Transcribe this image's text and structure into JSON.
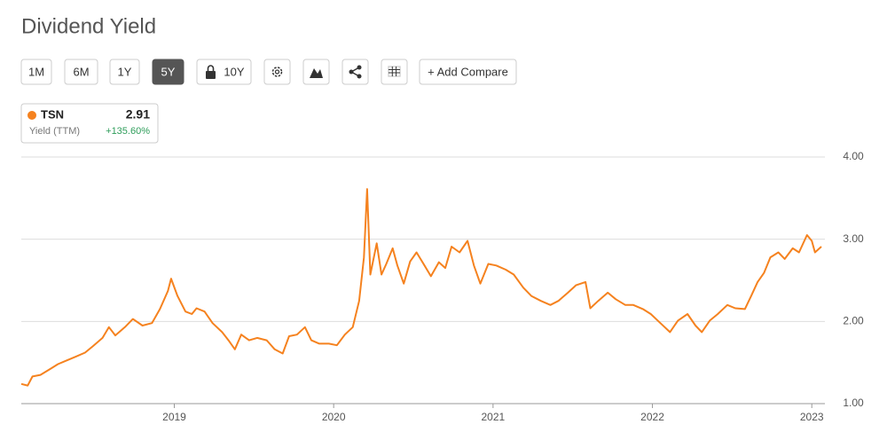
{
  "header": {
    "title": "Dividend Yield"
  },
  "toolbar": {
    "buttons": [
      "1M",
      "6M",
      "1Y",
      "5Y",
      "10Y"
    ],
    "selected": 3,
    "compare": "+ Add Compare"
  },
  "legend": {
    "subtitle": "Yield (TTM)",
    "value": 2.91,
    "change": "+135.60%"
  },
  "chart_data": {
    "type": "line",
    "x": [
      2018.04,
      2018.08,
      2018.11,
      2018.16,
      2018.22,
      2018.27,
      2018.33,
      2018.38,
      2018.44,
      2018.49,
      2018.55,
      2018.59,
      2018.63,
      2018.69,
      2018.74,
      2018.8,
      2018.86,
      2018.91,
      2018.96,
      2018.98,
      2019.02,
      2019.07,
      2019.11,
      2019.14,
      2019.19,
      2019.24,
      2019.3,
      2019.34,
      2019.38,
      2019.42,
      2019.47,
      2019.52,
      2019.58,
      2019.63,
      2019.68,
      2019.72,
      2019.77,
      2019.82,
      2019.86,
      2019.91,
      2019.97,
      2020.02,
      2020.07,
      2020.12,
      2020.16,
      2020.19,
      2020.21,
      2020.23,
      2020.27,
      2020.3,
      2020.33,
      2020.37,
      2020.4,
      2020.44,
      2020.48,
      2020.52,
      2020.57,
      2020.61,
      2020.66,
      2020.7,
      2020.74,
      2020.79,
      2020.84,
      2020.88,
      2020.92,
      2020.97,
      2021.02,
      2021.08,
      2021.13,
      2021.19,
      2021.24,
      2021.3,
      2021.36,
      2021.41,
      2021.47,
      2021.52,
      2021.58,
      2021.61,
      2021.66,
      2021.72,
      2021.77,
      2021.83,
      2021.88,
      2021.94,
      2021.99,
      2022.05,
      2022.11,
      2022.16,
      2022.22,
      2022.27,
      2022.31,
      2022.36,
      2022.41,
      2022.47,
      2022.52,
      2022.58,
      2022.62,
      2022.66,
      2022.7,
      2022.74,
      2022.79,
      2022.83,
      2022.88,
      2022.92,
      2022.97,
      2023.0,
      2023.02,
      2023.06
    ],
    "series": [
      {
        "name": "TSN",
        "color": "#f5821f",
        "values": [
          1.24,
          1.22,
          1.33,
          1.35,
          1.42,
          1.48,
          1.53,
          1.57,
          1.62,
          1.7,
          1.8,
          1.93,
          1.83,
          1.93,
          2.03,
          1.95,
          1.98,
          2.15,
          2.37,
          2.52,
          2.31,
          2.12,
          2.09,
          2.16,
          2.12,
          1.98,
          1.87,
          1.77,
          1.66,
          1.84,
          1.77,
          1.8,
          1.77,
          1.66,
          1.61,
          1.82,
          1.84,
          1.93,
          1.77,
          1.73,
          1.73,
          1.71,
          1.84,
          1.93,
          2.25,
          2.78,
          3.61,
          2.57,
          2.95,
          2.57,
          2.7,
          2.89,
          2.68,
          2.46,
          2.73,
          2.84,
          2.68,
          2.55,
          2.72,
          2.65,
          2.91,
          2.84,
          2.98,
          2.68,
          2.46,
          2.7,
          2.68,
          2.63,
          2.57,
          2.41,
          2.31,
          2.25,
          2.2,
          2.25,
          2.35,
          2.44,
          2.48,
          2.16,
          2.25,
          2.35,
          2.27,
          2.2,
          2.2,
          2.15,
          2.09,
          1.98,
          1.87,
          2.01,
          2.09,
          1.95,
          1.87,
          2.01,
          2.09,
          2.2,
          2.16,
          2.15,
          2.31,
          2.48,
          2.59,
          2.78,
          2.84,
          2.76,
          2.89,
          2.84,
          3.05,
          2.98,
          2.84,
          2.91
        ]
      }
    ],
    "xlim": [
      2018.04,
      2023.06
    ],
    "xticks": [
      2019,
      2020,
      2021,
      2022,
      2023
    ],
    "ylim": [
      1,
      4
    ],
    "yticks": [
      {
        "value": 1,
        "label": "1.00"
      },
      {
        "value": 2,
        "label": "2.00"
      },
      {
        "value": 3,
        "label": "3.00"
      },
      {
        "value": 4,
        "label": "4.00"
      }
    ],
    "grid": true
  }
}
